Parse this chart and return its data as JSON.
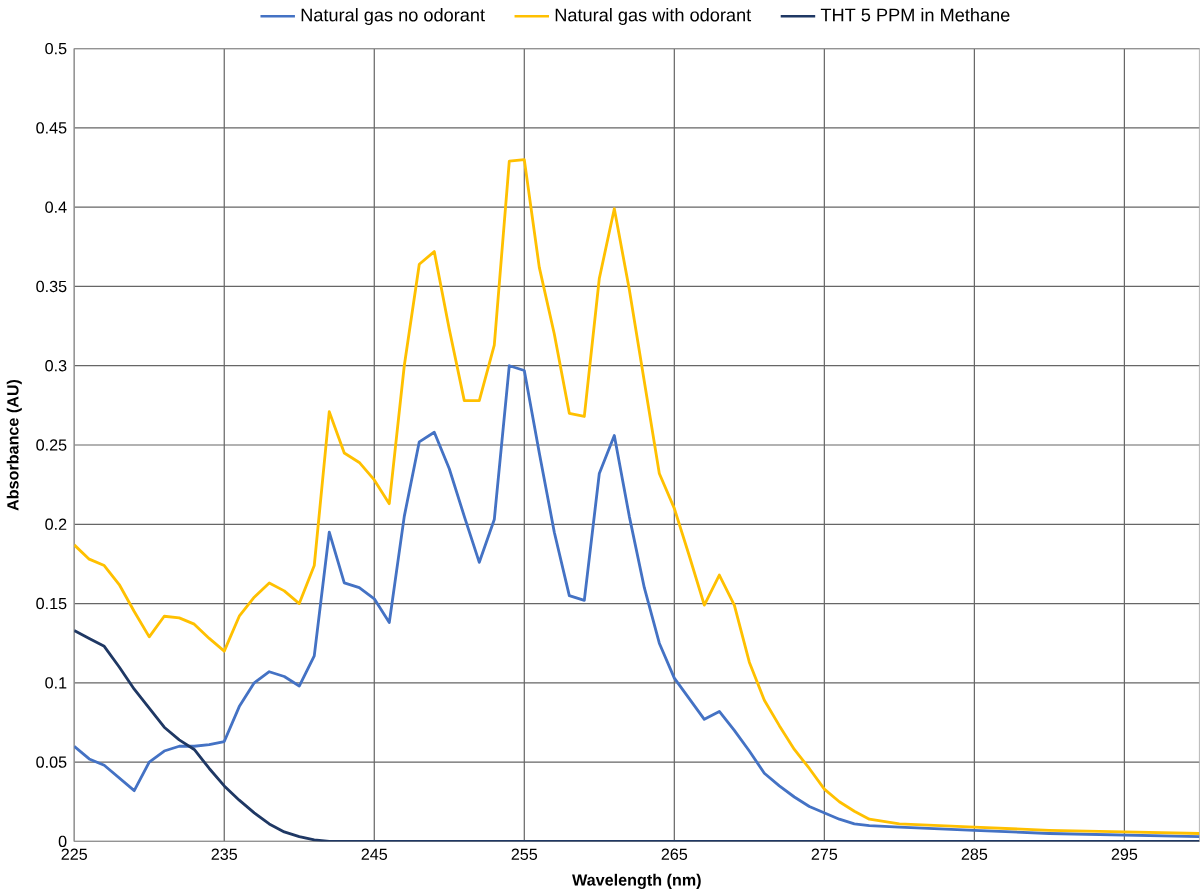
{
  "chart_data": {
    "type": "line",
    "xlabel": "Wavelength (nm)",
    "ylabel": "Absorbance (AU)",
    "x": [
      225,
      226,
      227,
      228,
      229,
      230,
      231,
      232,
      233,
      234,
      235,
      236,
      237,
      238,
      239,
      240,
      241,
      242,
      243,
      244,
      245,
      246,
      247,
      248,
      249,
      250,
      251,
      252,
      253,
      254,
      255,
      256,
      257,
      258,
      259,
      260,
      261,
      262,
      263,
      264,
      265,
      266,
      267,
      268,
      269,
      270,
      271,
      272,
      273,
      274,
      275,
      276,
      277,
      278,
      280,
      285,
      290,
      295,
      300
    ],
    "series": [
      {
        "name": "Natural gas no odorant",
        "color": "#4472c4",
        "values": [
          0.06,
          0.052,
          0.048,
          0.04,
          0.032,
          0.05,
          0.057,
          0.06,
          0.06,
          0.061,
          0.063,
          0.085,
          0.1,
          0.107,
          0.104,
          0.098,
          0.117,
          0.195,
          0.163,
          0.16,
          0.153,
          0.138,
          0.205,
          0.252,
          0.258,
          0.235,
          0.205,
          0.176,
          0.203,
          0.3,
          0.297,
          0.245,
          0.195,
          0.155,
          0.152,
          0.232,
          0.256,
          0.205,
          0.16,
          0.125,
          0.103,
          0.09,
          0.077,
          0.082,
          0.07,
          0.057,
          0.043,
          0.035,
          0.028,
          0.022,
          0.018,
          0.014,
          0.011,
          0.01,
          0.009,
          0.007,
          0.005,
          0.004,
          0.003
        ]
      },
      {
        "name": "Natural gas with odorant",
        "color": "#ffc000",
        "values": [
          0.187,
          0.178,
          0.174,
          0.162,
          0.145,
          0.129,
          0.142,
          0.141,
          0.137,
          0.128,
          0.12,
          0.142,
          0.154,
          0.163,
          0.158,
          0.15,
          0.174,
          0.271,
          0.245,
          0.239,
          0.228,
          0.213,
          0.3,
          0.364,
          0.372,
          0.323,
          0.278,
          0.278,
          0.313,
          0.429,
          0.43,
          0.362,
          0.32,
          0.27,
          0.268,
          0.355,
          0.399,
          0.348,
          0.29,
          0.232,
          0.21,
          0.18,
          0.149,
          0.168,
          0.149,
          0.113,
          0.089,
          0.073,
          0.058,
          0.046,
          0.033,
          0.025,
          0.019,
          0.014,
          0.011,
          0.009,
          0.007,
          0.006,
          0.005
        ]
      },
      {
        "name": "THT 5 PPM in Methane",
        "color": "#1f3864",
        "x": [
          225,
          226,
          227,
          228,
          229,
          230,
          231,
          232,
          233,
          234,
          235,
          236,
          237,
          238,
          239,
          240,
          241,
          242,
          300
        ],
        "values": [
          0.133,
          0.128,
          0.123,
          0.11,
          0.096,
          0.084,
          0.072,
          0.064,
          0.058,
          0.046,
          0.035,
          0.026,
          0.018,
          0.011,
          0.006,
          0.003,
          0.001,
          0,
          0
        ]
      }
    ],
    "xlim": [
      225,
      300
    ],
    "xticks": [
      225,
      235,
      245,
      255,
      265,
      275,
      285,
      295
    ],
    "ylim": [
      0,
      0.5
    ],
    "yticks": [
      0,
      0.05,
      0.1,
      0.15,
      0.2,
      0.25,
      0.3,
      0.35,
      0.4,
      0.45,
      0.5
    ],
    "grid": true,
    "legend": "top",
    "marker": "none",
    "line_style": "solid"
  }
}
